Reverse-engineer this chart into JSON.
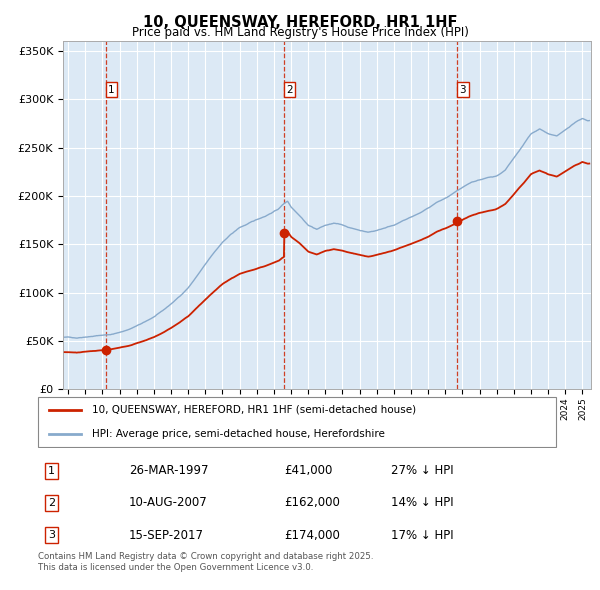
{
  "title": "10, QUEENSWAY, HEREFORD, HR1 1HF",
  "subtitle": "Price paid vs. HM Land Registry's House Price Index (HPI)",
  "sale_years": [
    1997.23,
    2007.61,
    2017.71
  ],
  "sale_prices": [
    41000,
    162000,
    174000
  ],
  "sale_labels": [
    "1",
    "2",
    "3"
  ],
  "legend_red": "10, QUEENSWAY, HEREFORD, HR1 1HF (semi-detached house)",
  "legend_blue": "HPI: Average price, semi-detached house, Herefordshire",
  "table_rows": [
    [
      "1",
      "26-MAR-1997",
      "£41,000",
      "27% ↓ HPI"
    ],
    [
      "2",
      "10-AUG-2007",
      "£162,000",
      "14% ↓ HPI"
    ],
    [
      "3",
      "15-SEP-2017",
      "£174,000",
      "17% ↓ HPI"
    ]
  ],
  "footnote": "Contains HM Land Registry data © Crown copyright and database right 2025.\nThis data is licensed under the Open Government Licence v3.0.",
  "ylim": [
    0,
    360000
  ],
  "xlim_start": 1994.7,
  "xlim_end": 2025.5,
  "background_color": "#dce9f5",
  "red_color": "#cc2200",
  "blue_color": "#88aacc",
  "grid_color": "#ffffff",
  "hpi_years": [
    1995,
    1995.5,
    1996,
    1996.5,
    1997,
    1997.5,
    1998,
    1998.5,
    1999,
    1999.5,
    2000,
    2000.5,
    2001,
    2001.5,
    2002,
    2002.5,
    2003,
    2003.5,
    2004,
    2004.5,
    2005,
    2005.5,
    2006,
    2006.5,
    2007,
    2007.3,
    2007.5,
    2007.8,
    2008,
    2008.5,
    2009,
    2009.5,
    2010,
    2010.5,
    2011,
    2011.5,
    2012,
    2012.5,
    2013,
    2013.5,
    2014,
    2014.5,
    2015,
    2015.5,
    2016,
    2016.5,
    2017,
    2017.5,
    2018,
    2018.5,
    2019,
    2019.5,
    2020,
    2020.5,
    2021,
    2021.5,
    2022,
    2022.5,
    2023,
    2023.5,
    2024,
    2024.5,
    2025,
    2025.3
  ],
  "hpi_prices": [
    54000,
    53500,
    55000,
    56000,
    57000,
    58000,
    60000,
    63000,
    67000,
    71000,
    76000,
    82000,
    89000,
    97000,
    106000,
    118000,
    130000,
    142000,
    153000,
    161000,
    168000,
    172000,
    176000,
    180000,
    185000,
    188000,
    192000,
    196000,
    190000,
    182000,
    172000,
    168000,
    172000,
    174000,
    172000,
    169000,
    167000,
    165000,
    167000,
    170000,
    173000,
    177000,
    181000,
    185000,
    190000,
    196000,
    200000,
    205000,
    210000,
    215000,
    218000,
    220000,
    222000,
    228000,
    240000,
    252000,
    265000,
    270000,
    265000,
    262000,
    268000,
    275000,
    280000,
    278000
  ]
}
